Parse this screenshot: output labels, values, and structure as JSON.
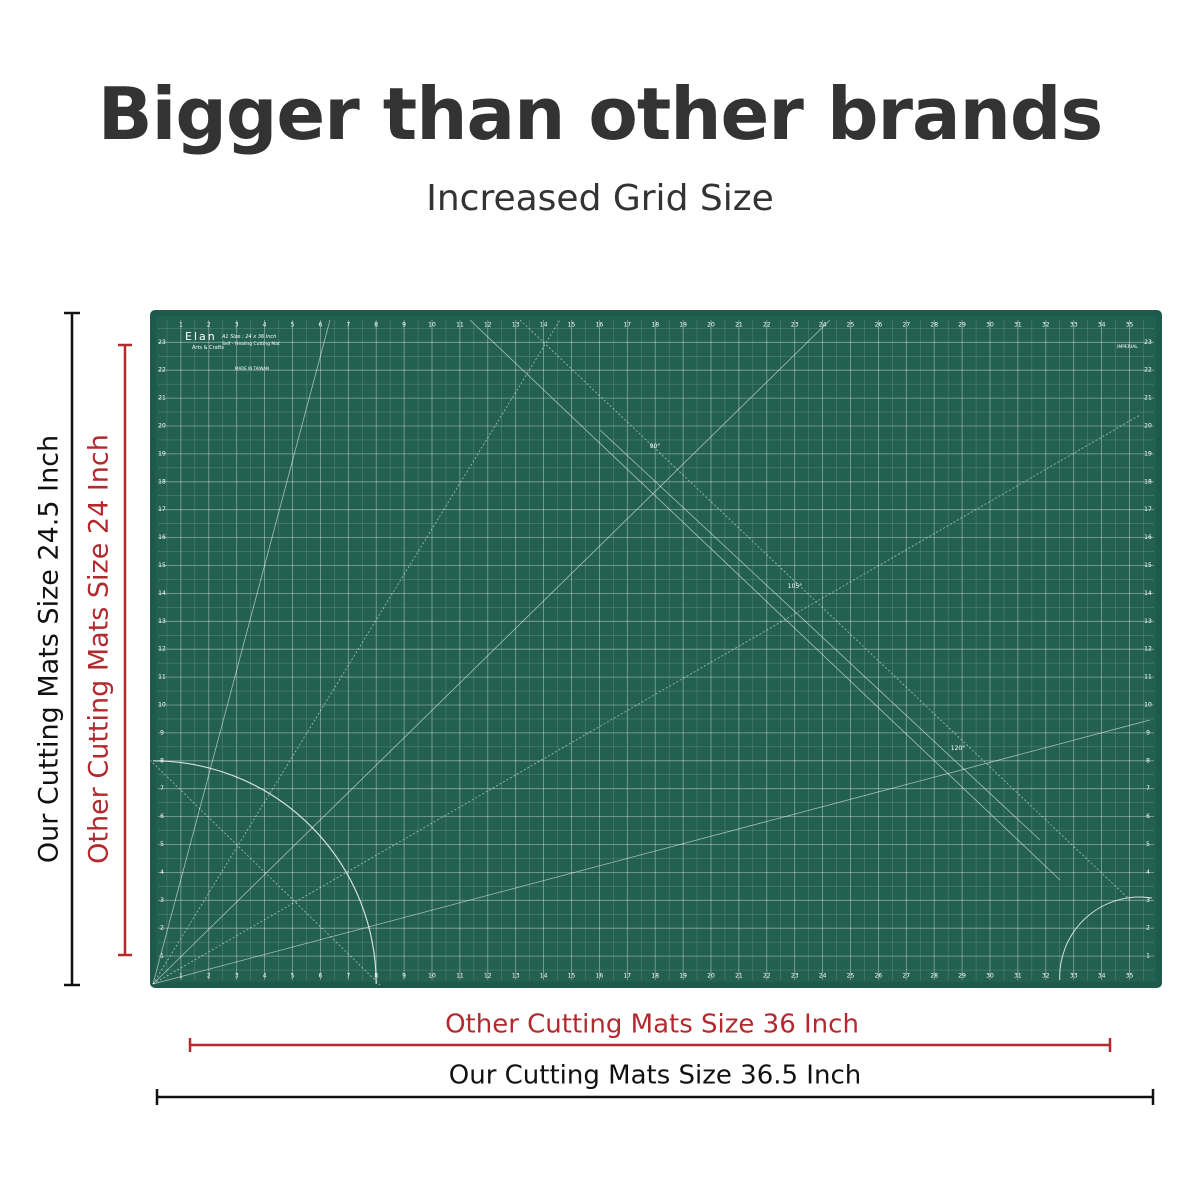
{
  "header": {
    "title": "Bigger than other brands",
    "subtitle": "Increased Grid Size"
  },
  "dimensions": {
    "our_height": "Our Cutting Mats Size 24.5 Inch",
    "other_height": "Other Cutting Mats Size 24 Inch",
    "other_width": "Other Cutting Mats Size 36 Inch",
    "our_width": "Our Cutting Mats Size 36.5 Inch"
  },
  "mat": {
    "brand": "Elan",
    "tagline": "Arts & Crafts",
    "size": "A1 Size : 24 x 36 Inch",
    "kind": "Self - Healing Cutting Mat",
    "origin": "MADE IN TAIWAN",
    "units": "IMPERIAL",
    "horizontal_ruler": [
      1,
      2,
      3,
      4,
      5,
      6,
      7,
      8,
      9,
      10,
      11,
      12,
      13,
      14,
      15,
      16,
      17,
      18,
      19,
      20,
      21,
      22,
      23,
      24,
      25,
      26,
      27,
      28,
      29,
      30,
      31,
      32,
      33,
      34,
      35
    ],
    "vertical_ruler": [
      1,
      2,
      3,
      4,
      5,
      6,
      7,
      8,
      9,
      10,
      11,
      12,
      13,
      14,
      15,
      16,
      17,
      18,
      19,
      20,
      21,
      22,
      23
    ],
    "angles": [
      "90°",
      "105°",
      "120°"
    ]
  }
}
